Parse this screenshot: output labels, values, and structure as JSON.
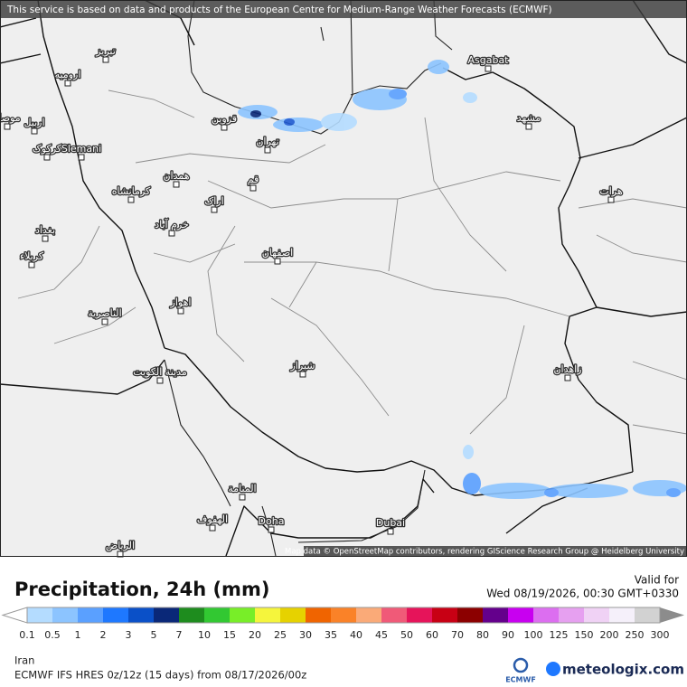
{
  "banner": "This service is based on data and products of the European Centre for Medium-Range Weather Forecasts (ECMWF)",
  "attribution": "Map data © OpenStreetMap contributors, rendering GIScience Research Group @ Heidelberg University",
  "cities": [
    "تبریز",
    "ارومیه",
    "موصل",
    "اربیل",
    "کرکوک",
    "Slemani",
    "قزوین",
    "تهران",
    "همدان",
    "کرمانشاه",
    "قم",
    "اراک",
    "خرم آباد",
    "بغداد",
    "كربلاء",
    "اصفهان",
    "اهواز",
    "الناصرية",
    "مدينة الكويت",
    "شیراز",
    "Asgabat",
    "مشهد",
    "هرات",
    "زاهدان",
    "المنامة",
    "الهفوف",
    "Doha",
    "Dubai",
    "الرياض"
  ],
  "title": "Precipitation, 24h (mm)",
  "valid_label": "Valid for",
  "valid_time": "Wed 08/19/2026, 00:30 GMT+0330",
  "legend": {
    "ticks": [
      0.1,
      0.5,
      1,
      2,
      3,
      5,
      7,
      10,
      15,
      20,
      25,
      30,
      35,
      40,
      45,
      50,
      60,
      70,
      80,
      90,
      100,
      125,
      150,
      200,
      250,
      300
    ],
    "colors": [
      "#b4dcff",
      "#8cc4ff",
      "#5aa0ff",
      "#1e78ff",
      "#0a50c8",
      "#0a2878",
      "#1e8c1e",
      "#32c832",
      "#78ee28",
      "#f5f53c",
      "#e6d200",
      "#f06400",
      "#fa8228",
      "#faaa78",
      "#f05a78",
      "#e6145a",
      "#c80014",
      "#8c0000",
      "#64008c",
      "#c800f0",
      "#dc6ef0",
      "#e6a0f0",
      "#f0d2f5",
      "#f5f0fa",
      "#d2d2d2"
    ]
  },
  "region": "Iran",
  "model": "ECMWF IFS HRES 0z/12z (15 days) from  08/17/2026/00z",
  "ecmwf_logo": "ECMWF",
  "brand": "meteologix.com"
}
